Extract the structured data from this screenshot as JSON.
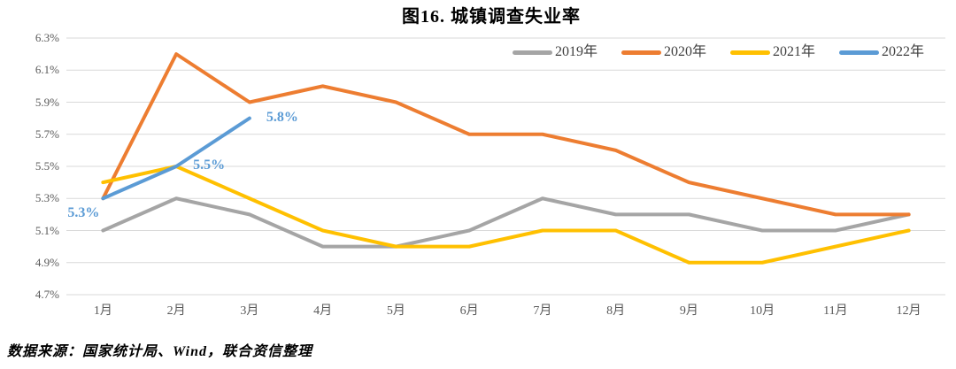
{
  "title": "图16.  城镇调查失业率",
  "source": "数据来源：国家统计局、Wind，联合资信整理",
  "chart_data": {
    "type": "line",
    "title": "图16.  城镇调查失业率",
    "categories": [
      "1月",
      "2月",
      "3月",
      "4月",
      "5月",
      "6月",
      "7月",
      "8月",
      "9月",
      "10月",
      "11月",
      "12月"
    ],
    "series": [
      {
        "name": "2019年",
        "color": "#A5A5A5",
        "values": [
          5.1,
          5.3,
          5.2,
          5.0,
          5.0,
          5.1,
          5.3,
          5.2,
          5.2,
          5.1,
          5.1,
          5.2
        ]
      },
      {
        "name": "2020年",
        "color": "#ED7D31",
        "values": [
          5.3,
          6.2,
          5.9,
          6.0,
          5.9,
          5.7,
          5.7,
          5.6,
          5.4,
          5.3,
          5.2,
          5.2
        ]
      },
      {
        "name": "2021年",
        "color": "#FFC000",
        "values": [
          5.4,
          5.5,
          5.3,
          5.1,
          5.0,
          5.0,
          5.1,
          5.1,
          4.9,
          4.9,
          5.0,
          5.1
        ]
      },
      {
        "name": "2022年",
        "color": "#5B9BD5",
        "values": [
          5.3,
          5.5,
          5.8
        ]
      }
    ],
    "annotations": [
      {
        "text": "5.3%",
        "series": "2022年",
        "index": 0,
        "anchor": "below-left"
      },
      {
        "text": "5.5%",
        "series": "2022年",
        "index": 1,
        "anchor": "right"
      },
      {
        "text": "5.8%",
        "series": "2022年",
        "index": 2,
        "anchor": "right"
      }
    ],
    "annotation_color": "#5B9BD5",
    "y_axis": {
      "min": 4.7,
      "max": 6.3,
      "step": 0.2,
      "tick_labels": [
        "6.3%",
        "6.1%",
        "5.9%",
        "5.7%",
        "5.5%",
        "5.3%",
        "5.1%",
        "4.9%",
        "4.7%"
      ]
    },
    "grid": true,
    "gridline_color": "#D9D9D9",
    "axis_label_color": "#595959",
    "legend_position": "top-right",
    "ylabel": "",
    "xlabel": ""
  }
}
